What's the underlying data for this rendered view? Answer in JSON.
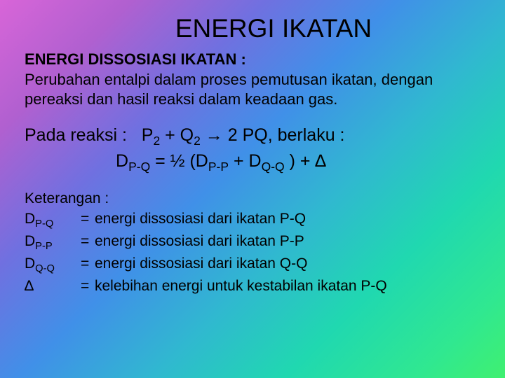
{
  "title": "ENERGI IKATAN",
  "subtitle": "ENERGI DISSOSIASI IKATAN :",
  "definition": "Perubahan entalpi dalam proses pemutusan ikatan, dengan pereaksi dan hasil reaksi dalam keadaan gas.",
  "reaction_label": "Pada reaksi :",
  "reaction_eq": "P",
  "reaction_eq_rest": " → 2 PQ,   berlaku :",
  "reaction_plus": " + Q",
  "reaction_sub1": "2",
  "reaction_sub2": "2",
  "formula_d": "D",
  "formula_pq": "P-Q",
  "formula_eq": " = ½ (D",
  "formula_pp": "P-P",
  "formula_plus2": " +  D",
  "formula_qq": "Q-Q",
  "formula_end": " )  +  ∆",
  "legend_title": "Keterangan :",
  "legend": [
    {
      "sym_main": "D",
      "sym_sub": "P-Q",
      "desc": "energi dissosiasi dari ikatan P-Q"
    },
    {
      "sym_main": "D",
      "sym_sub": "P-P",
      "desc": "energi dissosiasi dari ikatan P-P"
    },
    {
      "sym_main": "D",
      "sym_sub": "Q-Q",
      "desc": "energi dissosiasi dari ikatan Q-Q"
    },
    {
      "sym_main": "∆",
      "sym_sub": "",
      "desc": "kelebihan energi untuk kestabilan ikatan P-Q"
    }
  ]
}
